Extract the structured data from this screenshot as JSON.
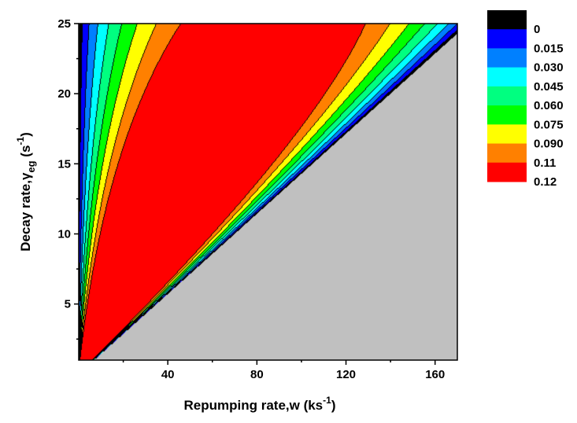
{
  "chart_data": {
    "type": "contour",
    "xlabel": {
      "main": "Repumping rate,w (ks",
      "sup": "-1",
      "tail": ")"
    },
    "ylabel": {
      "main": "Decay rate,γ",
      "sub": "eg",
      "mid": " (s",
      "sup": "-1",
      "tail": ")"
    },
    "xlim": [
      0,
      170
    ],
    "ylim": [
      1,
      25
    ],
    "xticks": [
      40,
      80,
      120,
      160
    ],
    "yticks": [
      5,
      10,
      15,
      20,
      25
    ],
    "x_minor_step": 20,
    "y_minor_step": 2.5,
    "undefined_region_color": "#c0c0c0",
    "legend_position": "right",
    "levels": [
      "0",
      "0.015",
      "0.030",
      "0.045",
      "0.060",
      "0.075",
      "0.090",
      "0.11",
      "0.12"
    ],
    "level_values": [
      0,
      0.015,
      0.03,
      0.045,
      0.06,
      0.075,
      0.09,
      0.105,
      0.12
    ],
    "colors": [
      "#000000",
      "#0000ff",
      "#0080ff",
      "#00ffff",
      "#00ff80",
      "#00ff00",
      "#ffff00",
      "#ff8000",
      "#ff0000"
    ]
  }
}
